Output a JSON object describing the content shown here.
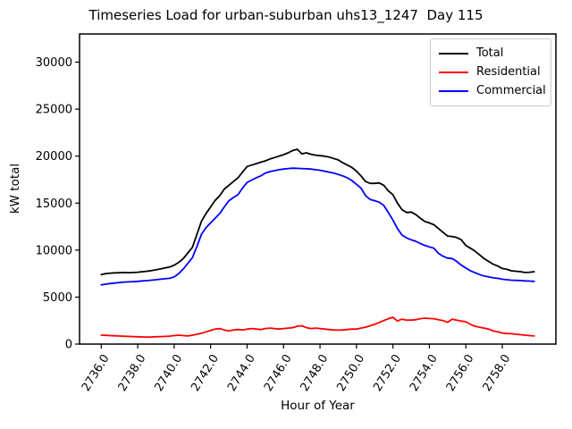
{
  "figure": {
    "title": "Timeseries Load for urban-suburban uhs13_1247  Day 115",
    "background_color": "#ffffff",
    "accent_colors": {
      "total": "#000000",
      "residential": "#ff0000",
      "commercial": "#0000ff"
    }
  },
  "chart_data": {
    "type": "line",
    "title": "Timeseries Load for urban-suburban uhs13_1247  Day 115",
    "xlabel": "Hour of Year",
    "ylabel": "kW total",
    "xlim": [
      2734.81,
      2760.94
    ],
    "ylim": [
      0,
      33000
    ],
    "grid": false,
    "legend_position": "upper right",
    "x_tick_rotation_deg": 58,
    "x_ticks": [
      2736.0,
      2738.0,
      2740.0,
      2742.0,
      2744.0,
      2746.0,
      2748.0,
      2750.0,
      2752.0,
      2754.0,
      2756.0,
      2758.0
    ],
    "x_tick_labels": [
      "2736.0",
      "2738.0",
      "2740.0",
      "2742.0",
      "2744.0",
      "2746.0",
      "2748.0",
      "2750.0",
      "2752.0",
      "2754.0",
      "2756.0",
      "2758.0"
    ],
    "y_ticks": [
      0,
      5000,
      10000,
      15000,
      20000,
      25000,
      30000
    ],
    "y_tick_labels": [
      "0",
      "5000",
      "10000",
      "15000",
      "20000",
      "25000",
      "30000"
    ],
    "x": [
      2736.0,
      2736.25,
      2736.5,
      2736.75,
      2737.0,
      2737.25,
      2737.5,
      2737.75,
      2738.0,
      2738.25,
      2738.5,
      2738.75,
      2739.0,
      2739.25,
      2739.5,
      2739.75,
      2740.0,
      2740.25,
      2740.5,
      2740.75,
      2741.0,
      2741.25,
      2741.5,
      2741.75,
      2742.0,
      2742.25,
      2742.5,
      2742.75,
      2743.0,
      2743.25,
      2743.5,
      2743.75,
      2744.0,
      2744.25,
      2744.5,
      2744.75,
      2745.0,
      2745.25,
      2745.5,
      2745.75,
      2746.0,
      2746.25,
      2746.5,
      2746.75,
      2747.0,
      2747.25,
      2747.5,
      2747.75,
      2748.0,
      2748.25,
      2748.5,
      2748.75,
      2749.0,
      2749.25,
      2749.5,
      2749.75,
      2750.0,
      2750.25,
      2750.5,
      2750.75,
      2751.0,
      2751.25,
      2751.5,
      2751.75,
      2752.0,
      2752.25,
      2752.5,
      2752.75,
      2753.0,
      2753.25,
      2753.5,
      2753.75,
      2754.0,
      2754.25,
      2754.5,
      2754.75,
      2755.0,
      2755.25,
      2755.5,
      2755.75,
      2756.0,
      2756.25,
      2756.5,
      2756.75,
      2757.0,
      2757.25,
      2757.5,
      2757.75,
      2758.0,
      2758.25,
      2758.5,
      2758.75,
      2759.0,
      2759.25,
      2759.5,
      2759.75
    ],
    "series": [
      {
        "name": "Total",
        "color": "#000000",
        "values": [
          7400,
          7500,
          7550,
          7580,
          7600,
          7620,
          7600,
          7620,
          7650,
          7700,
          7750,
          7820,
          7900,
          8000,
          8100,
          8200,
          8400,
          8700,
          9100,
          9700,
          10300,
          11700,
          13100,
          13900,
          14600,
          15300,
          15800,
          16500,
          16900,
          17300,
          17700,
          18300,
          18900,
          19050,
          19200,
          19350,
          19500,
          19700,
          19850,
          20000,
          20150,
          20350,
          20600,
          20730,
          20250,
          20350,
          20200,
          20100,
          20050,
          20000,
          19900,
          19750,
          19600,
          19300,
          19050,
          18800,
          18400,
          17900,
          17300,
          17100,
          17100,
          17150,
          16900,
          16300,
          15900,
          15000,
          14300,
          14000,
          14050,
          13800,
          13400,
          13050,
          12900,
          12700,
          12300,
          11900,
          11500,
          11450,
          11350,
          11100,
          10500,
          10200,
          9900,
          9500,
          9100,
          8800,
          8500,
          8300,
          8050,
          7950,
          7800,
          7750,
          7700,
          7620,
          7650,
          7700
        ]
      },
      {
        "name": "Residential",
        "color": "#ff0000",
        "values": [
          950,
          930,
          900,
          880,
          860,
          840,
          820,
          800,
          780,
          760,
          750,
          760,
          780,
          800,
          820,
          850,
          900,
          950,
          900,
          870,
          950,
          1050,
          1150,
          1300,
          1450,
          1600,
          1650,
          1500,
          1400,
          1500,
          1550,
          1500,
          1600,
          1650,
          1600,
          1550,
          1650,
          1700,
          1650,
          1600,
          1650,
          1700,
          1750,
          1900,
          1950,
          1750,
          1650,
          1700,
          1650,
          1600,
          1550,
          1500,
          1480,
          1500,
          1550,
          1600,
          1590,
          1700,
          1800,
          1950,
          2100,
          2300,
          2500,
          2700,
          2850,
          2450,
          2650,
          2550,
          2550,
          2600,
          2700,
          2760,
          2720,
          2700,
          2600,
          2500,
          2320,
          2650,
          2550,
          2450,
          2380,
          2100,
          1900,
          1800,
          1700,
          1600,
          1400,
          1300,
          1180,
          1120,
          1100,
          1050,
          1000,
          950,
          900,
          870
        ]
      },
      {
        "name": "Commercial",
        "color": "#0000ff",
        "values": [
          6300,
          6380,
          6450,
          6500,
          6550,
          6600,
          6620,
          6650,
          6680,
          6720,
          6750,
          6800,
          6850,
          6900,
          6950,
          7000,
          7150,
          7500,
          8000,
          8600,
          9200,
          10400,
          11700,
          12400,
          12900,
          13400,
          13900,
          14600,
          15250,
          15600,
          15900,
          16600,
          17200,
          17450,
          17700,
          17900,
          18200,
          18350,
          18450,
          18550,
          18620,
          18680,
          18720,
          18700,
          18680,
          18650,
          18620,
          18550,
          18500,
          18400,
          18300,
          18200,
          18050,
          17900,
          17700,
          17400,
          17000,
          16600,
          15800,
          15400,
          15250,
          15100,
          14750,
          14000,
          13200,
          12300,
          11600,
          11300,
          11100,
          10950,
          10700,
          10500,
          10350,
          10200,
          9650,
          9350,
          9150,
          9100,
          8800,
          8400,
          8100,
          7800,
          7600,
          7400,
          7250,
          7150,
          7050,
          7000,
          6900,
          6850,
          6800,
          6780,
          6760,
          6720,
          6700,
          6680
        ]
      }
    ]
  }
}
